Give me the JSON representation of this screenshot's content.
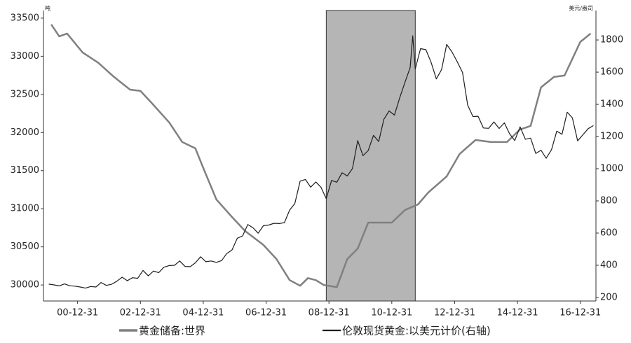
{
  "chart_data": {
    "type": "line",
    "y_label": "吨",
    "y2_label": "美元/盎司",
    "xlim": [
      "99-11-30",
      "17-06-30"
    ],
    "xticks": [
      "00-12-31",
      "02-12-31",
      "04-12-31",
      "06-12-31",
      "08-12-31",
      "10-12-31",
      "12-12-31",
      "14-12-31",
      "16-12-31"
    ],
    "ylim": [
      29790,
      33600
    ],
    "yticks": [
      30000,
      30500,
      31000,
      31500,
      32000,
      32500,
      33000,
      33500
    ],
    "y2lim": [
      178,
      1983
    ],
    "y2ticks": [
      200,
      400,
      600,
      800,
      1000,
      1200,
      1400,
      1600,
      1800
    ],
    "highlight": [
      "08-11-30",
      "11-09-30"
    ],
    "highlight_color": "#b5b5b5",
    "series": [
      {
        "name": "黄金储备:世界",
        "color": "#808080",
        "width": 2.5,
        "x": [
          "00-02-29",
          "00-05-31",
          "00-08-31",
          "01-02-28",
          "01-08-31",
          "02-02-28",
          "02-08-31",
          "02-12-31",
          "03-05-31",
          "03-11-30",
          "04-04-30",
          "04-09-30",
          "04-12-31",
          "05-05-31",
          "05-11-30",
          "06-04-30",
          "06-11-30",
          "07-04-30",
          "07-09-30",
          "08-01-31",
          "08-04-30",
          "08-07-31",
          "08-10-31",
          "09-03-31",
          "09-07-31",
          "09-11-30",
          "10-03-31",
          "10-12-31",
          "11-05-31",
          "11-10-31",
          "12-02-29",
          "12-09-30",
          "13-02-28",
          "13-08-31",
          "14-02-28",
          "14-08-31",
          "15-01-31",
          "15-05-31",
          "15-09-30",
          "16-02-29",
          "16-06-30",
          "16-12-31",
          "17-04-30"
        ],
        "values": [
          33417,
          33261,
          33298,
          33050,
          32912,
          32729,
          32563,
          32545,
          32361,
          32132,
          31875,
          31792,
          31535,
          31122,
          30892,
          30708,
          30525,
          30340,
          30064,
          29990,
          30090,
          30064,
          30000,
          29972,
          30340,
          30478,
          30818,
          30818,
          30983,
          31057,
          31213,
          31424,
          31719,
          31902,
          31875,
          31875,
          32040,
          32086,
          32591,
          32729,
          32747,
          33188,
          33298
        ]
      },
      {
        "name": "伦敦现货黄金:以美元计价(右轴)",
        "color": "#1e1e1e",
        "width": 1.2,
        "axis": "y2",
        "x": [
          "00-01-31",
          "00-03-31",
          "00-05-31",
          "00-07-31",
          "00-09-30",
          "00-11-30",
          "01-01-31",
          "01-03-31",
          "01-05-31",
          "01-07-31",
          "01-09-30",
          "01-11-30",
          "02-01-31",
          "02-03-31",
          "02-05-31",
          "02-07-31",
          "02-09-30",
          "02-11-30",
          "03-01-31",
          "03-03-31",
          "03-05-31",
          "03-07-31",
          "03-09-30",
          "03-11-30",
          "04-01-31",
          "04-03-31",
          "04-05-31",
          "04-07-31",
          "04-09-30",
          "04-11-30",
          "05-01-31",
          "05-03-31",
          "05-05-31",
          "05-07-31",
          "05-09-30",
          "05-11-30",
          "06-01-31",
          "06-03-31",
          "06-05-31",
          "06-07-31",
          "06-09-30",
          "06-11-30",
          "07-01-31",
          "07-03-31",
          "07-05-31",
          "07-07-31",
          "07-09-30",
          "07-11-30",
          "08-01-31",
          "08-03-31",
          "08-05-31",
          "08-07-31",
          "08-09-30",
          "08-11-30",
          "09-01-31",
          "09-03-31",
          "09-05-31",
          "09-07-31",
          "09-09-30",
          "09-11-30",
          "10-01-31",
          "10-03-31",
          "10-05-31",
          "10-07-31",
          "10-09-30",
          "10-11-30",
          "11-01-31",
          "11-03-31",
          "11-05-31",
          "11-07-31",
          "11-08-31",
          "11-09-30",
          "11-11-30",
          "12-01-31",
          "12-03-31",
          "12-05-31",
          "12-07-31",
          "12-09-30",
          "12-11-30",
          "13-01-31",
          "13-03-31",
          "13-05-31",
          "13-07-31",
          "13-09-30",
          "13-11-30",
          "14-01-31",
          "14-03-31",
          "14-05-31",
          "14-07-31",
          "14-09-30",
          "14-11-30",
          "15-01-31",
          "15-03-31",
          "15-05-31",
          "15-07-31",
          "15-09-30",
          "15-11-30",
          "16-01-31",
          "16-03-31",
          "16-05-31",
          "16-07-31",
          "16-09-30",
          "16-11-30",
          "17-01-31",
          "17-03-31",
          "17-05-31"
        ],
        "values": [
          283,
          278,
          272,
          284,
          273,
          270,
          265,
          258,
          268,
          265,
          293,
          275,
          282,
          301,
          326,
          304,
          323,
          319,
          368,
          334,
          364,
          354,
          388,
          398,
          400,
          427,
          393,
          391,
          415,
          453,
          422,
          427,
          418,
          429,
          473,
          495,
          568,
          582,
          653,
          633,
          599,
          646,
          650,
          661,
          659,
          665,
          743,
          783,
          923,
          933,
          885,
          918,
          884,
          814,
          927,
          916,
          975,
          955,
          1001,
          1175,
          1081,
          1113,
          1207,
          1169,
          1307,
          1359,
          1333,
          1439,
          1536,
          1628,
          1826,
          1620,
          1746,
          1740,
          1662,
          1558,
          1615,
          1772,
          1726,
          1664,
          1598,
          1394,
          1324,
          1326,
          1253,
          1251,
          1291,
          1250,
          1285,
          1217,
          1175,
          1260,
          1183,
          1190,
          1095,
          1115,
          1065,
          1118,
          1233,
          1214,
          1351,
          1316,
          1173,
          1211,
          1249,
          1268
        ]
      }
    ]
  }
}
